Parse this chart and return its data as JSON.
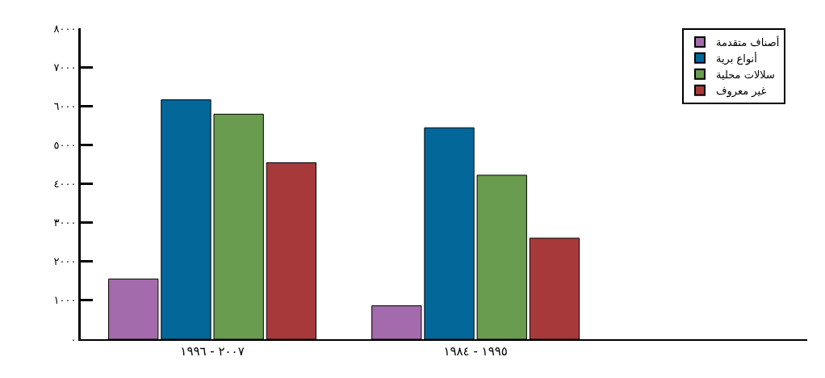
{
  "chart_data": {
    "type": "bar",
    "categories": [
      "٢٠٠٧ - ١٩٩٦",
      "١٩٩٥ - ١٩٨٤"
    ],
    "series": [
      {
        "name": "أصناف متقدمة",
        "color": "#a36bab",
        "values": [
          1550,
          860
        ]
      },
      {
        "name": "أنواع برية",
        "color": "#03679a",
        "values": [
          6160,
          5440
        ]
      },
      {
        "name": "سلالات محلية",
        "color": "#699c4e",
        "values": [
          5790,
          4220
        ]
      },
      {
        "name": "غير معروف",
        "color": "#a8393b",
        "values": [
          4540,
          2600
        ]
      }
    ],
    "ylim": [
      0,
      8000
    ],
    "yticks": [
      {
        "value": 0,
        "label": "٠"
      },
      {
        "value": 1000,
        "label": "١٠٠٠"
      },
      {
        "value": 2000,
        "label": "٢٠٠٠"
      },
      {
        "value": 3000,
        "label": "٣٠٠٠"
      },
      {
        "value": 4000,
        "label": "٤٠٠٠"
      },
      {
        "value": 5000,
        "label": "٥٠٠٠"
      },
      {
        "value": 6000,
        "label": "٦٠٠٠"
      },
      {
        "value": 7000,
        "label": "٧٠٠٠"
      },
      {
        "value": 8000,
        "label": "٨٠٠٠"
      }
    ],
    "legend": "top right"
  }
}
